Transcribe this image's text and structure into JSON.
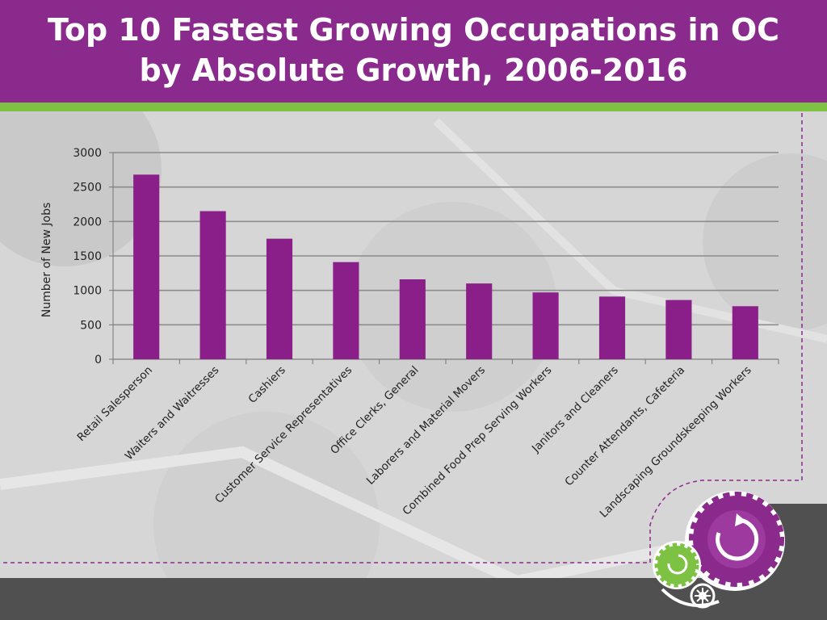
{
  "title": {
    "line1": "Top 10 Fastest Growing Occupations in OC",
    "line2": "by Absolute Growth, 2006-2016"
  },
  "colors": {
    "header": "#8a2a8c",
    "stripe": "#7dc242",
    "bar": "#8a1f8a",
    "footer": "#505050"
  },
  "chart_data": {
    "type": "bar",
    "title": "Top 10 Fastest Growing Occupations in OC by Absolute Growth, 2006-2016",
    "xlabel": "",
    "ylabel": "Number of New Jobs",
    "ylim": [
      0,
      3000
    ],
    "yticks": [
      0,
      500,
      1000,
      1500,
      2000,
      2500,
      3000
    ],
    "grid": true,
    "categories": [
      "Retail Salesperson",
      "Waiters and Waitresses",
      "Cashiers",
      "Customer Service Representatives",
      "Office Clerks, General",
      "Laborers and Material Movers",
      "Combined Food Prep Serving Workers",
      "Janitors and Cleaners",
      "Counter Attendants, Cafeteria",
      "Landscaping Groundskeeping Workers"
    ],
    "values": [
      2680,
      2150,
      1750,
      1410,
      1160,
      1100,
      970,
      910,
      860,
      770
    ]
  }
}
